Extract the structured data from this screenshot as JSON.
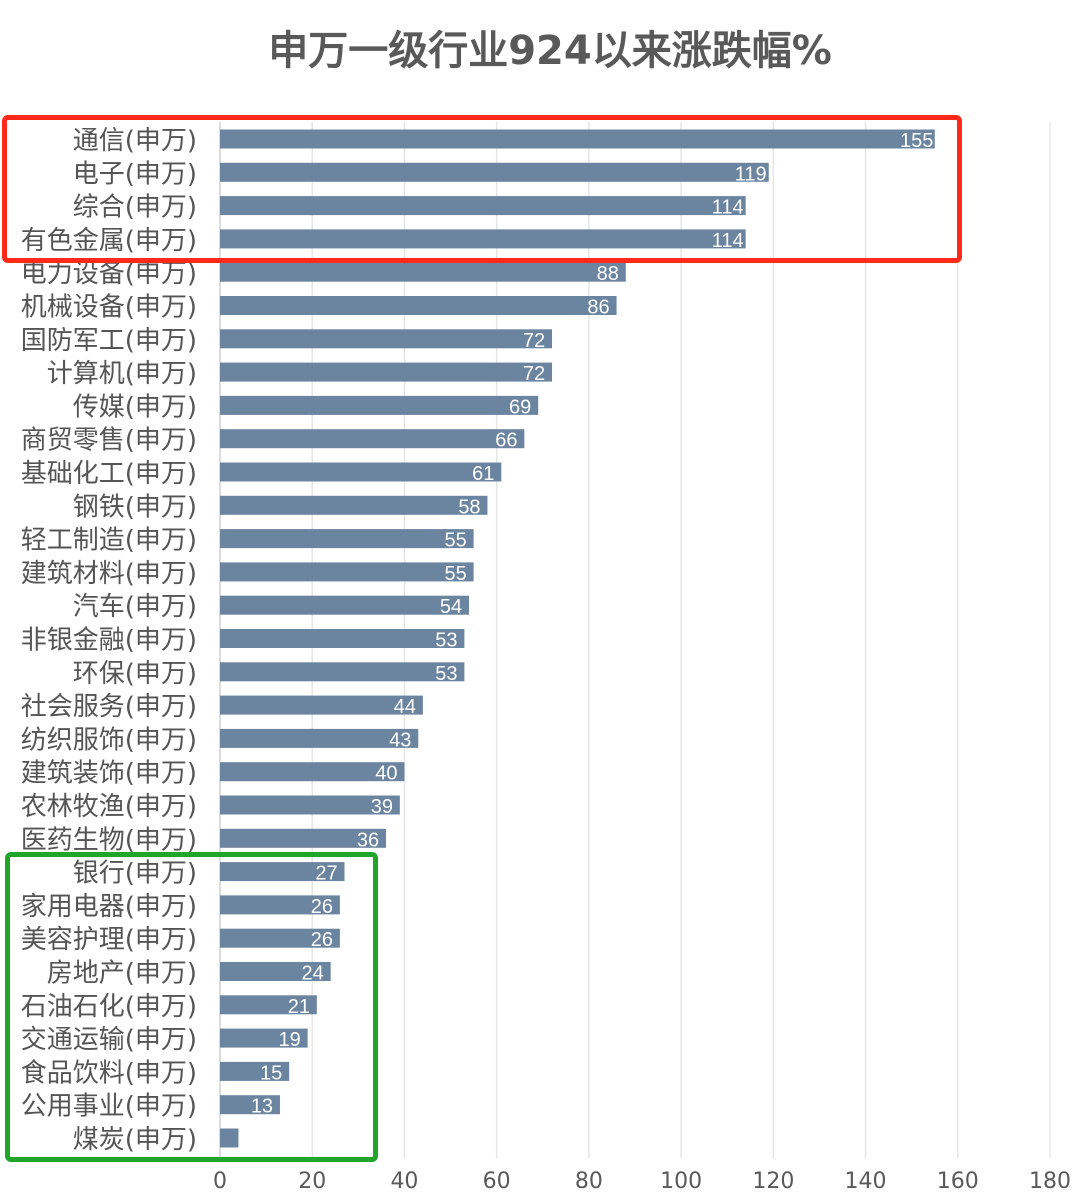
{
  "chart_data": {
    "type": "bar",
    "orientation": "horizontal",
    "title": "申万一级行业924以来涨跌幅%",
    "xlabel": "",
    "ylabel": "",
    "xlim": [
      0,
      180
    ],
    "xticks": [
      0,
      20,
      40,
      60,
      80,
      100,
      120,
      140,
      160,
      180
    ],
    "grid": true,
    "bar_color": "#6b84a0",
    "categories": [
      "通信(申万)",
      "电子(申万)",
      "综合(申万)",
      "有色金属(申万)",
      "电力设备(申万)",
      "机械设备(申万)",
      "国防军工(申万)",
      "计算机(申万)",
      "传媒(申万)",
      "商贸零售(申万)",
      "基础化工(申万)",
      "钢铁(申万)",
      "轻工制造(申万)",
      "建筑材料(申万)",
      "汽车(申万)",
      "非银金融(申万)",
      "环保(申万)",
      "社会服务(申万)",
      "纺织服饰(申万)",
      "建筑装饰(申万)",
      "农林牧渔(申万)",
      "医药生物(申万)",
      "银行(申万)",
      "家用电器(申万)",
      "美容护理(申万)",
      "房地产(申万)",
      "石油石化(申万)",
      "交通运输(申万)",
      "食品饮料(申万)",
      "公用事业(申万)",
      "煤炭(申万)"
    ],
    "values": [
      155,
      119,
      114,
      114,
      88,
      86,
      72,
      72,
      69,
      66,
      61,
      58,
      55,
      55,
      54,
      53,
      53,
      44,
      43,
      40,
      39,
      36,
      27,
      26,
      26,
      24,
      21,
      19,
      15,
      13,
      4
    ],
    "data_labels": [
      "155",
      "119",
      "114",
      "114",
      "88",
      "86",
      "72",
      "72",
      "69",
      "66",
      "61",
      "58",
      "55",
      "55",
      "54",
      "53",
      "53",
      "44",
      "43",
      "40",
      "39",
      "36",
      "27",
      "26",
      "26",
      "24",
      "21",
      "19",
      "15",
      "13",
      ""
    ],
    "highlights": [
      {
        "color": "#ff2a1a",
        "categories_from": "通信(申万)",
        "categories_to": "有色金属(申万)"
      },
      {
        "color": "#1fa52a",
        "categories_from": "银行(申万)",
        "categories_to": "煤炭(申万)"
      }
    ]
  }
}
